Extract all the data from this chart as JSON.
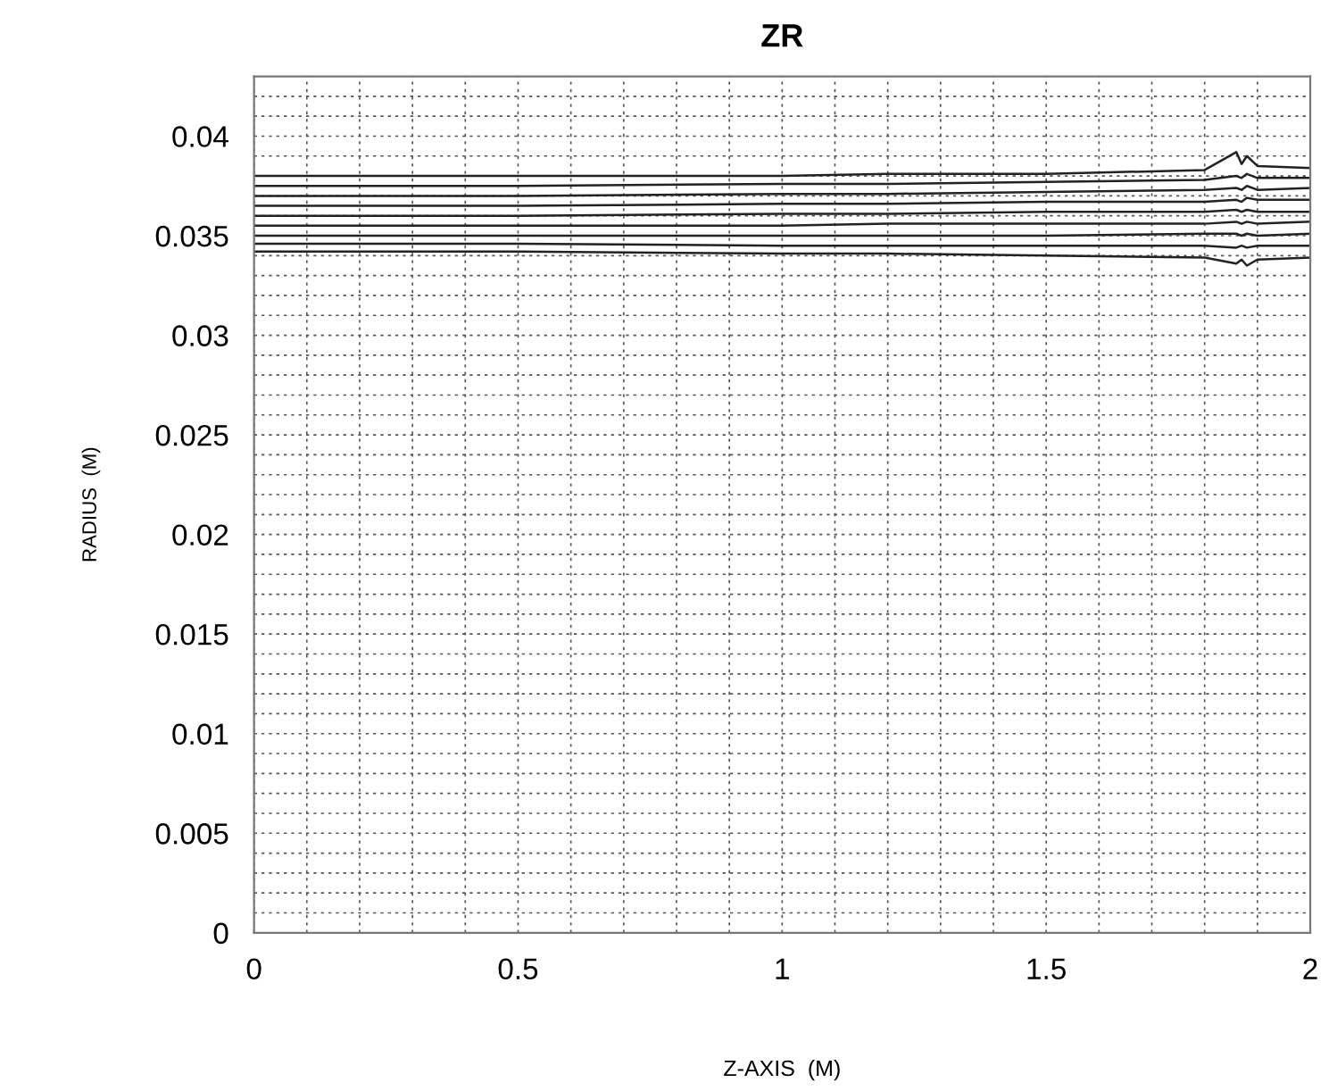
{
  "chart_data": {
    "type": "line",
    "title": "ZR",
    "xlabel": "Z-AXIS  (M)",
    "ylabel": "RADIUS  (M)",
    "xlim": [
      0,
      2
    ],
    "ylim": [
      0,
      0.043
    ],
    "xticks": [
      0,
      {
        "value": 0.1,
        "label": null
      },
      {
        "value": 0.2,
        "label": null
      },
      {
        "value": 0.3,
        "label": null
      },
      {
        "value": 0.4,
        "label": null
      },
      0.5,
      {
        "value": 0.6,
        "label": null
      },
      {
        "value": 0.7,
        "label": null
      },
      {
        "value": 0.8,
        "label": null
      },
      {
        "value": 0.9,
        "label": null
      },
      1,
      {
        "value": 1.1,
        "label": null
      },
      {
        "value": 1.2,
        "label": null
      },
      {
        "value": 1.3,
        "label": null
      },
      {
        "value": 1.4,
        "label": null
      },
      1.5,
      {
        "value": 1.6,
        "label": null
      },
      {
        "value": 1.7,
        "label": null
      },
      {
        "value": 1.8,
        "label": null
      },
      {
        "value": 1.9,
        "label": null
      },
      2
    ],
    "yticks": [
      0,
      {
        "value": 0.001,
        "label": null
      },
      {
        "value": 0.002,
        "label": null
      },
      {
        "value": 0.003,
        "label": null
      },
      {
        "value": 0.004,
        "label": null
      },
      0.005,
      {
        "value": 0.006,
        "label": null
      },
      {
        "value": 0.007,
        "label": null
      },
      {
        "value": 0.008,
        "label": null
      },
      {
        "value": 0.009,
        "label": null
      },
      0.01,
      {
        "value": 0.011,
        "label": null
      },
      {
        "value": 0.012,
        "label": null
      },
      {
        "value": 0.013,
        "label": null
      },
      {
        "value": 0.014,
        "label": null
      },
      0.015,
      {
        "value": 0.016,
        "label": null
      },
      {
        "value": 0.017,
        "label": null
      },
      {
        "value": 0.018,
        "label": null
      },
      {
        "value": 0.019,
        "label": null
      },
      0.02,
      {
        "value": 0.021,
        "label": null
      },
      {
        "value": 0.022,
        "label": null
      },
      {
        "value": 0.023,
        "label": null
      },
      {
        "value": 0.024,
        "label": null
      },
      0.025,
      {
        "value": 0.026,
        "label": null
      },
      {
        "value": 0.027,
        "label": null
      },
      {
        "value": 0.028,
        "label": null
      },
      {
        "value": 0.029,
        "label": null
      },
      0.03,
      {
        "value": 0.031,
        "label": null
      },
      {
        "value": 0.032,
        "label": null
      },
      {
        "value": 0.033,
        "label": null
      },
      {
        "value": 0.034,
        "label": null
      },
      0.035,
      {
        "value": 0.036,
        "label": null
      },
      {
        "value": 0.037,
        "label": null
      },
      {
        "value": 0.038,
        "label": null
      },
      {
        "value": 0.039,
        "label": null
      },
      0.04,
      {
        "value": 0.041,
        "label": null
      },
      {
        "value": 0.042,
        "label": null
      }
    ],
    "grid": true,
    "marker": "none",
    "line_style": "solid",
    "x": [
      0,
      0.5,
      1,
      1.2,
      1.5,
      1.8,
      1.86,
      1.87,
      1.88,
      1.9,
      2
    ],
    "series": [
      {
        "color": "#222222",
        "values": [
          0.038,
          0.038,
          0.038,
          0.0381,
          0.0381,
          0.0383,
          0.0392,
          0.0386,
          0.039,
          0.0385,
          0.0384
        ]
      },
      {
        "color": "#222222",
        "values": [
          0.0375,
          0.0375,
          0.0376,
          0.0376,
          0.0377,
          0.0378,
          0.038,
          0.0379,
          0.0381,
          0.0379,
          0.0379
        ]
      },
      {
        "color": "#222222",
        "values": [
          0.037,
          0.037,
          0.0371,
          0.0371,
          0.0372,
          0.0373,
          0.0374,
          0.0373,
          0.0375,
          0.0373,
          0.0374
        ]
      },
      {
        "color": "#222222",
        "values": [
          0.0365,
          0.0365,
          0.0366,
          0.0366,
          0.0367,
          0.0367,
          0.0368,
          0.0367,
          0.0369,
          0.0368,
          0.0368
        ]
      },
      {
        "color": "#222222",
        "values": [
          0.036,
          0.036,
          0.0361,
          0.0361,
          0.0362,
          0.0362,
          0.0363,
          0.0362,
          0.0363,
          0.0362,
          0.0362
        ]
      },
      {
        "color": "#222222",
        "values": [
          0.0355,
          0.0355,
          0.0355,
          0.0356,
          0.0356,
          0.0356,
          0.0357,
          0.0356,
          0.0357,
          0.0356,
          0.0357
        ]
      },
      {
        "color": "#222222",
        "values": [
          0.035,
          0.035,
          0.035,
          0.035,
          0.035,
          0.0351,
          0.0351,
          0.035,
          0.0351,
          0.035,
          0.0351
        ]
      },
      {
        "color": "#222222",
        "values": [
          0.0346,
          0.0346,
          0.0345,
          0.0345,
          0.0345,
          0.0345,
          0.0344,
          0.0345,
          0.0344,
          0.0345,
          0.0345
        ]
      },
      {
        "color": "#222222",
        "values": [
          0.0342,
          0.0342,
          0.0341,
          0.0341,
          0.034,
          0.0339,
          0.0336,
          0.0338,
          0.0335,
          0.0338,
          0.0339
        ]
      }
    ]
  }
}
